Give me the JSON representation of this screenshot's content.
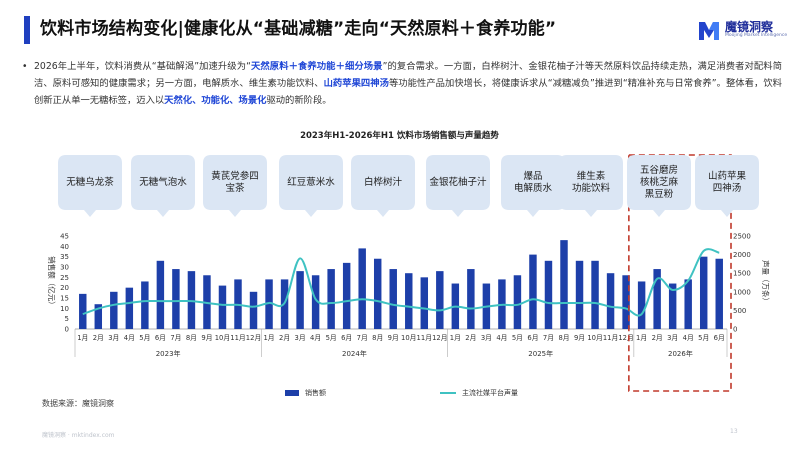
{
  "page_title": "饮料市场结构变化|健康化从“基础减糖”走向“天然原料＋食养功能”",
  "logo": {
    "name": "魔镜洞察",
    "sub": "Moojing Market Intelligence"
  },
  "intro": {
    "bullet": "•",
    "parts": [
      {
        "t": "2026年上半年，饮料消费从“基础解渴”加速升级为“",
        "hl": false
      },
      {
        "t": "天然原料＋食养功能＋细分场景",
        "hl": true
      },
      {
        "t": "”的复合需求。一方面，白桦树汁、金银花柚子汁等天然原料饮品持续走热，满足消费者对配料简洁、原料可感知的健康需求；另一方面，电解质水、维生素功能饮料、",
        "hl": false
      },
      {
        "t": "山药苹果四神汤",
        "hl": true
      },
      {
        "t": "等功能性产品加快增长，将健康诉求从“减糖减负”推进到“精准补充与日常食养”。整体看，饮料创新正从单一无糖标签，迈入以",
        "hl": false
      },
      {
        "t": "天然化、功能化、场景化",
        "hl": true
      },
      {
        "t": "驱动的新阶段。",
        "hl": false
      }
    ]
  },
  "bubbles": [
    "无糖乌龙茶",
    "无糖气泡水",
    "黄芪党参四\n宝茶",
    "红豆薏米水",
    "白桦树汁",
    "金银花柚子汁",
    "爆品\n电解质水",
    "维生素\n功能饮料",
    "五谷磨房\n核桃芝麻\n黑豆粉",
    "山药苹果\n四神汤"
  ],
  "chart_data": {
    "type": "bar+line",
    "title": "2023年H1-2026年H1 饮料市场销售额与声量趋势",
    "categories": [
      "1月",
      "2月",
      "3月",
      "4月",
      "5月",
      "6月",
      "7月",
      "8月",
      "9月",
      "10月",
      "11月",
      "12月",
      "1月",
      "2月",
      "3月",
      "4月",
      "5月",
      "6月",
      "7月",
      "8月",
      "9月",
      "10月",
      "11月",
      "12月",
      "1月",
      "2月",
      "3月",
      "4月",
      "5月",
      "6月",
      "7月",
      "8月",
      "9月",
      "10月",
      "11月",
      "12月",
      "1月",
      "2月",
      "3月",
      "4月",
      "5月",
      "6月"
    ],
    "year_groups": [
      {
        "label": "2023年",
        "start": 0,
        "end": 11
      },
      {
        "label": "2024年",
        "start": 12,
        "end": 23
      },
      {
        "label": "2025年",
        "start": 24,
        "end": 35
      },
      {
        "label": "2026年",
        "start": 36,
        "end": 41
      }
    ],
    "series": [
      {
        "name": "销售额",
        "type": "bar",
        "axis": "left",
        "color": "#1d3fa9",
        "values": [
          17,
          12,
          18,
          20,
          23,
          33,
          29,
          28,
          26,
          21,
          24,
          18,
          24,
          24,
          28,
          26,
          29,
          32,
          39,
          34,
          29,
          27,
          25,
          28,
          22,
          29,
          22,
          24,
          26,
          36,
          33,
          43,
          33,
          33,
          27,
          26,
          23,
          29,
          22,
          24,
          35,
          34
        ]
      },
      {
        "name": "主流社媒平台声量",
        "type": "line",
        "axis": "right",
        "color": "#3fc2c2",
        "values": [
          400,
          550,
          650,
          700,
          750,
          750,
          750,
          750,
          700,
          650,
          650,
          600,
          700,
          700,
          1900,
          800,
          700,
          750,
          800,
          750,
          650,
          600,
          550,
          500,
          600,
          550,
          600,
          650,
          650,
          800,
          700,
          700,
          700,
          700,
          600,
          550,
          400,
          1350,
          1050,
          1300,
          2100,
          2050
        ]
      }
    ],
    "y_left": {
      "label": "销售额（亿元）",
      "min": 0,
      "max": 45,
      "ticks": [
        0,
        5,
        10,
        15,
        20,
        25,
        30,
        35,
        40,
        45
      ]
    },
    "y_right": {
      "label": "声量（万条）",
      "min": 0,
      "max": 2500,
      "ticks": [
        0,
        500,
        1000,
        1500,
        2000,
        2500
      ]
    },
    "legend": {
      "bar": "销售额",
      "line": "主流社媒平台声量",
      "placement": "bottom"
    },
    "grid": false,
    "highlight": {
      "start": 36,
      "end": 41,
      "color": "#c0392b"
    }
  },
  "source": "数据来源：魔镜洞察",
  "footer": {
    "watermark": "魔镜洞察 · mktindex.com",
    "page": "13"
  },
  "colors": {
    "accent": "#1f3fbf",
    "bar": "#1d3fa9",
    "line": "#3fc2c2",
    "bubble": "#dbe6f4",
    "highlight": "#c0392b"
  }
}
